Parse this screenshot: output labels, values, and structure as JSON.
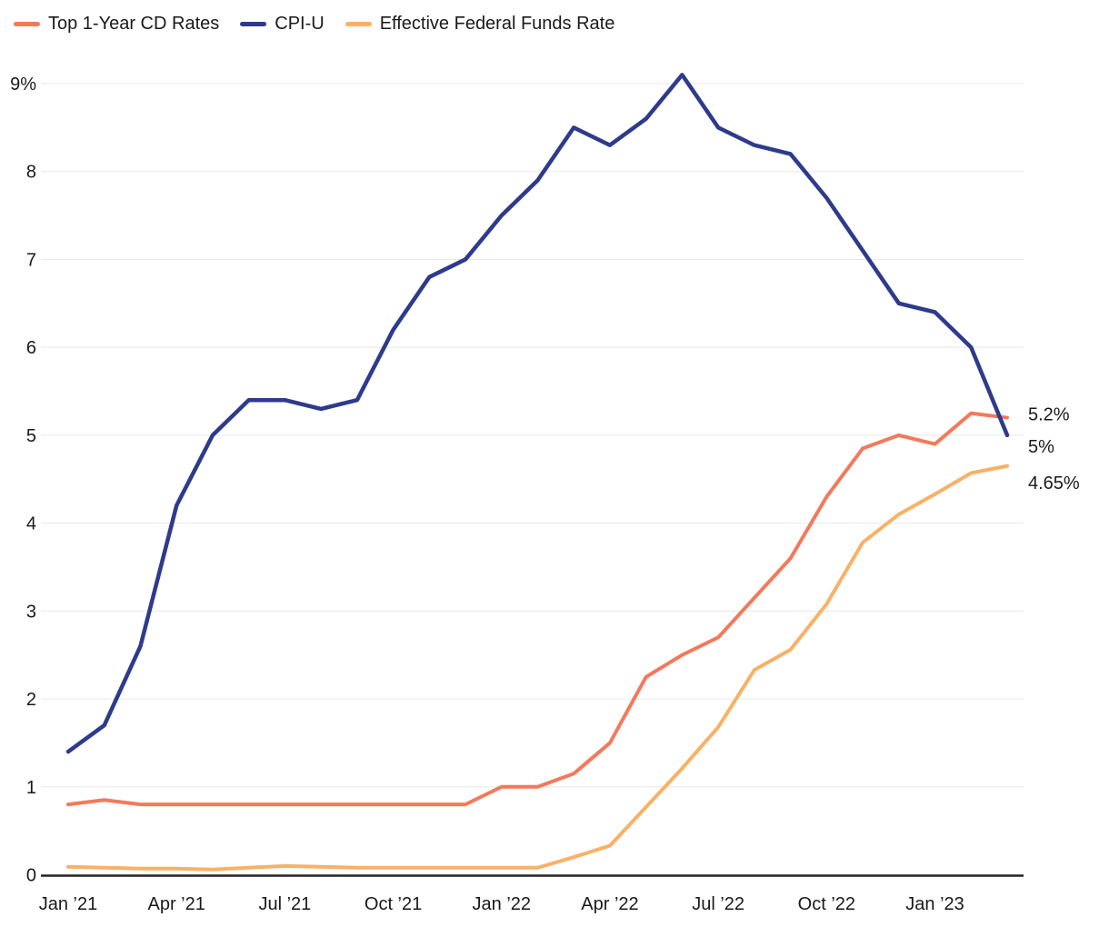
{
  "legend": [
    {
      "label": "Top 1-Year CD Rates",
      "color": "#f4795b"
    },
    {
      "label": "CPI-U",
      "color": "#2e3a8c"
    },
    {
      "label": "Effective Federal Funds Rate",
      "color": "#f9b166"
    }
  ],
  "colors": {
    "background": "#ffffff",
    "gridline": "#e8e8e8",
    "axis_line": "#222222",
    "text": "#1a1a1a",
    "cd_rates": "#f4795b",
    "cpi_u": "#2e3a8c",
    "fed_funds": "#f9b166"
  },
  "chart_data": {
    "type": "line",
    "title": "",
    "xlabel": "",
    "ylabel": "",
    "ylim": [
      0,
      9
    ],
    "grid": "horizontal",
    "legend_position": "top-left",
    "y_ticks": [
      0,
      1,
      2,
      3,
      4,
      5,
      6,
      7,
      8,
      9
    ],
    "y_tick_labels": [
      "0",
      "1",
      "2",
      "3",
      "4",
      "5",
      "6",
      "7",
      "8",
      "9%"
    ],
    "x": [
      "Jan ’21",
      "Feb ’21",
      "Mar ’21",
      "Apr ’21",
      "May ’21",
      "Jun ’21",
      "Jul ’21",
      "Aug ’21",
      "Sep ’21",
      "Oct ’21",
      "Nov ’21",
      "Dec ’21",
      "Jan ’22",
      "Feb ’22",
      "Mar ’22",
      "Apr ’22",
      "May ’22",
      "Jun ’22",
      "Jul ’22",
      "Aug ’22",
      "Sep ’22",
      "Oct ’22",
      "Nov ’22",
      "Dec ’22",
      "Jan ’23",
      "Feb ’23",
      "Mar ’23"
    ],
    "x_tick_indices": [
      0,
      3,
      6,
      9,
      12,
      15,
      18,
      21,
      24
    ],
    "x_tick_labels": [
      "Jan ’21",
      "Apr ’21",
      "Jul ’21",
      "Oct ’21",
      "Jan ’22",
      "Apr ’22",
      "Jul ’22",
      "Oct ’22",
      "Jan ’23"
    ],
    "series": [
      {
        "name": "Top 1-Year CD Rates",
        "color": "#f4795b",
        "end_label": "5.2%",
        "values": [
          0.8,
          0.85,
          0.8,
          0.8,
          0.8,
          0.8,
          0.8,
          0.8,
          0.8,
          0.8,
          0.8,
          0.8,
          1.0,
          1.0,
          1.15,
          1.5,
          2.25,
          2.5,
          2.7,
          3.15,
          3.6,
          4.3,
          4.85,
          5.0,
          4.9,
          5.25,
          5.2
        ]
      },
      {
        "name": "CPI-U",
        "color": "#2e3a8c",
        "end_label": "5%",
        "values": [
          1.4,
          1.7,
          2.6,
          4.2,
          5.0,
          5.4,
          5.4,
          5.3,
          5.4,
          6.2,
          6.8,
          7.0,
          7.5,
          7.9,
          8.5,
          8.3,
          8.6,
          9.1,
          8.5,
          8.3,
          8.2,
          7.7,
          7.1,
          6.5,
          6.4,
          6.0,
          5.0
        ]
      },
      {
        "name": "Effective Federal Funds Rate",
        "color": "#f9b166",
        "end_label": "4.65%",
        "values": [
          0.09,
          0.08,
          0.07,
          0.07,
          0.06,
          0.08,
          0.1,
          0.09,
          0.08,
          0.08,
          0.08,
          0.08,
          0.08,
          0.08,
          0.2,
          0.33,
          0.77,
          1.21,
          1.68,
          2.33,
          2.56,
          3.08,
          3.78,
          4.1,
          4.33,
          4.57,
          4.65
        ]
      }
    ]
  }
}
